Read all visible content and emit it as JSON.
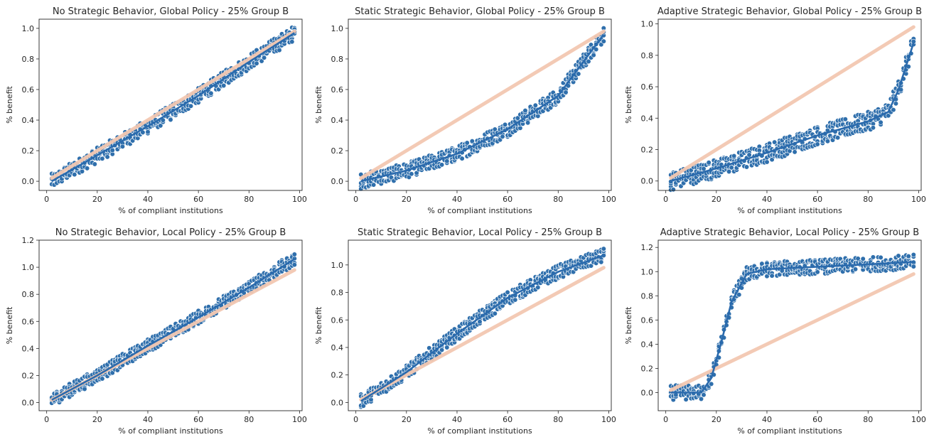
{
  "figure": {
    "colors": {
      "points": "#2f6fac",
      "point_edge": "#ffffff",
      "fit_line": "#2a6aad",
      "reference_line": "#f3c8b2"
    }
  },
  "chart_data": [
    {
      "type": "scatter",
      "title": "No Strategic Behavior, Global Policy - 25% Group B",
      "xlabel": "% of compliant institutions",
      "ylabel": "% benefit",
      "xlim": [
        -3,
        101
      ],
      "ylim": [
        -0.06,
        1.06
      ],
      "xticks": [
        0,
        20,
        40,
        60,
        80,
        100
      ],
      "yticks": [
        0.0,
        0.2,
        0.4,
        0.6,
        0.8,
        1.0
      ],
      "ytick_labels": [
        "0.0",
        "0.2",
        "0.4",
        "0.6",
        "0.8",
        "1.0"
      ],
      "reference_line": {
        "x": [
          2,
          98
        ],
        "y": [
          0.02,
          0.98
        ]
      },
      "series": [
        {
          "x_range": [
            2,
            98
          ],
          "trend": [
            [
              2,
              0.0
            ],
            [
              20,
              0.17
            ],
            [
              40,
              0.36
            ],
            [
              60,
              0.56
            ],
            [
              80,
              0.78
            ],
            [
              98,
              0.97
            ]
          ],
          "spread": 0.05
        }
      ]
    },
    {
      "type": "scatter",
      "title": "Static Strategic Behavior, Global Policy - 25% Group B",
      "xlabel": "% of compliant institutions",
      "ylabel": "% benefit",
      "xlim": [
        -3,
        101
      ],
      "ylim": [
        -0.06,
        1.06
      ],
      "xticks": [
        0,
        20,
        40,
        60,
        80,
        100
      ],
      "yticks": [
        0.0,
        0.2,
        0.4,
        0.6,
        0.8,
        1.0
      ],
      "ytick_labels": [
        "0.0",
        "0.2",
        "0.4",
        "0.6",
        "0.8",
        "1.0"
      ],
      "reference_line": {
        "x": [
          2,
          98
        ],
        "y": [
          0.02,
          0.98
        ]
      },
      "series": [
        {
          "x_range": [
            2,
            98
          ],
          "trend": [
            [
              2,
              0.0
            ],
            [
              20,
              0.07
            ],
            [
              40,
              0.18
            ],
            [
              60,
              0.34
            ],
            [
              80,
              0.56
            ],
            [
              98,
              0.96
            ]
          ],
          "spread": 0.05
        }
      ]
    },
    {
      "type": "scatter",
      "title": "Adaptive Strategic Behavior, Global Policy - 25% Group B",
      "xlabel": "% of compliant institutions",
      "ylabel": "% benefit",
      "xlim": [
        -3,
        101
      ],
      "ylim": [
        -0.06,
        1.03
      ],
      "xticks": [
        0,
        20,
        40,
        60,
        80,
        100
      ],
      "yticks": [
        0.0,
        0.2,
        0.4,
        0.6,
        0.8,
        1.0
      ],
      "ytick_labels": [
        "0.0",
        "0.2",
        "0.4",
        "0.6",
        "0.8",
        "1.0"
      ],
      "reference_line": {
        "x": [
          2,
          98
        ],
        "y": [
          0.02,
          0.98
        ]
      },
      "series": [
        {
          "x_range": [
            2,
            98
          ],
          "trend": [
            [
              2,
              0.0
            ],
            [
              20,
              0.08
            ],
            [
              40,
              0.18
            ],
            [
              60,
              0.29
            ],
            [
              80,
              0.38
            ],
            [
              88,
              0.44
            ],
            [
              92,
              0.58
            ],
            [
              98,
              0.88
            ]
          ],
          "spread": 0.06
        }
      ]
    },
    {
      "type": "scatter",
      "title": "No Strategic Behavior, Local Policy - 25% Group B",
      "xlabel": "% of compliant institutions",
      "ylabel": "% benefit",
      "xlim": [
        -3,
        101
      ],
      "ylim": [
        -0.06,
        1.2
      ],
      "xticks": [
        0,
        20,
        40,
        60,
        80,
        100
      ],
      "yticks": [
        0.0,
        0.2,
        0.4,
        0.6,
        0.8,
        1.0,
        1.2
      ],
      "ytick_labels": [
        "0.0",
        "0.2",
        "0.4",
        "0.6",
        "0.8",
        "1.0",
        "1.2"
      ],
      "reference_line": {
        "x": [
          2,
          98
        ],
        "y": [
          0.02,
          0.98
        ]
      },
      "series": [
        {
          "x_range": [
            2,
            98
          ],
          "trend": [
            [
              2,
              0.02
            ],
            [
              20,
              0.2
            ],
            [
              40,
              0.42
            ],
            [
              60,
              0.63
            ],
            [
              80,
              0.85
            ],
            [
              98,
              1.06
            ]
          ],
          "spread": 0.05
        }
      ]
    },
    {
      "type": "scatter",
      "title": "Static Strategic Behavior, Local Policy - 25% Group B",
      "xlabel": "% of compliant institutions",
      "ylabel": "% benefit",
      "xlim": [
        -3,
        101
      ],
      "ylim": [
        -0.06,
        1.18
      ],
      "xticks": [
        0,
        20,
        40,
        60,
        80,
        100
      ],
      "yticks": [
        0.0,
        0.2,
        0.4,
        0.6,
        0.8,
        1.0
      ],
      "ytick_labels": [
        "0.0",
        "0.2",
        "0.4",
        "0.6",
        "0.8",
        "1.0"
      ],
      "reference_line": {
        "x": [
          2,
          98
        ],
        "y": [
          0.02,
          0.98
        ]
      },
      "series": [
        {
          "x_range": [
            2,
            98
          ],
          "trend": [
            [
              2,
              0.01
            ],
            [
              20,
              0.22
            ],
            [
              40,
              0.5
            ],
            [
              60,
              0.76
            ],
            [
              80,
              0.95
            ],
            [
              98,
              1.07
            ]
          ],
          "spread": 0.05
        }
      ]
    },
    {
      "type": "scatter",
      "title": "Adaptive Strategic Behavior, Local Policy - 25% Group B",
      "xlabel": "% of compliant institutions",
      "ylabel": "% benefit",
      "xlim": [
        -3,
        101
      ],
      "ylim": [
        -0.15,
        1.26
      ],
      "xticks": [
        0,
        20,
        40,
        60,
        80,
        100
      ],
      "yticks": [
        0.0,
        0.2,
        0.4,
        0.6,
        0.8,
        1.0,
        1.2
      ],
      "ytick_labels": [
        "0.0",
        "0.2",
        "0.4",
        "0.6",
        "0.8",
        "1.0",
        "1.2"
      ],
      "reference_line": {
        "x": [
          2,
          98
        ],
        "y": [
          0.02,
          0.98
        ]
      },
      "series": [
        {
          "x_range": [
            2,
            98
          ],
          "trend": [
            [
              2,
              0.0
            ],
            [
              14,
              0.0
            ],
            [
              18,
              0.12
            ],
            [
              22,
              0.42
            ],
            [
              26,
              0.75
            ],
            [
              32,
              0.98
            ],
            [
              40,
              1.02
            ],
            [
              60,
              1.04
            ],
            [
              80,
              1.06
            ],
            [
              98,
              1.08
            ]
          ],
          "spread": 0.06
        }
      ]
    }
  ]
}
